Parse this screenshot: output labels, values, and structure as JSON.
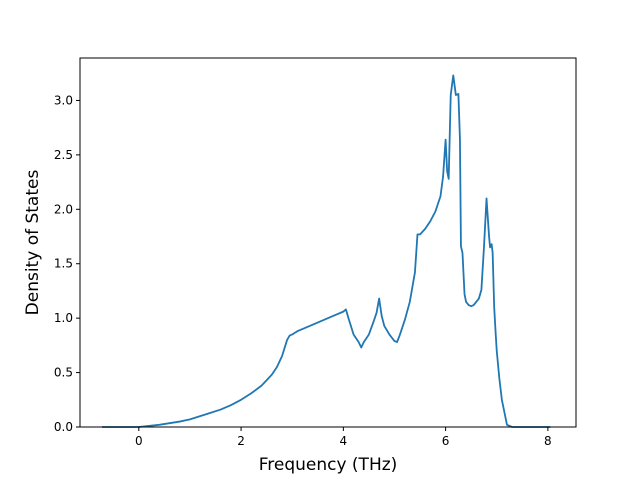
{
  "chart_data": {
    "type": "line",
    "title": "",
    "xlabel": "Frequency (THz)",
    "ylabel": "Density of States",
    "xlim": [
      -1.15,
      8.55
    ],
    "ylim": [
      0,
      3.39
    ],
    "xticks": [
      0,
      2,
      4,
      6,
      8
    ],
    "xtick_labels": [
      "0",
      "2",
      "4",
      "6",
      "8"
    ],
    "yticks": [
      0,
      0.5,
      1,
      1.5,
      2,
      2.5,
      3
    ],
    "ytick_labels": [
      "0.0",
      "0.5",
      "1.0",
      "1.5",
      "2.0",
      "2.5",
      "3.0"
    ],
    "grid": false,
    "legend": "none",
    "color": "#1f77b4",
    "series": [
      {
        "x": [
          -0.72,
          -0.4,
          0.0,
          0.2,
          0.4,
          0.6,
          0.8,
          1.0,
          1.2,
          1.4,
          1.6,
          1.8,
          2.0,
          2.2,
          2.4,
          2.6,
          2.7,
          2.8,
          2.9,
          2.95,
          3.0,
          3.1,
          3.2,
          3.4,
          3.6,
          3.8,
          4.0,
          4.05,
          4.1,
          4.2,
          4.3,
          4.35,
          4.4,
          4.5,
          4.6,
          4.65,
          4.7,
          4.75,
          4.8,
          4.9,
          5.0,
          5.05,
          5.1,
          5.2,
          5.3,
          5.4,
          5.45,
          5.5,
          5.6,
          5.7,
          5.8,
          5.9,
          5.95,
          6.0,
          6.03,
          6.06,
          6.1,
          6.15,
          6.2,
          6.25,
          6.28,
          6.3,
          6.33,
          6.37,
          6.4,
          6.45,
          6.5,
          6.55,
          6.6,
          6.65,
          6.7,
          6.75,
          6.8,
          6.85,
          6.87,
          6.9,
          6.92,
          6.95,
          6.98,
          7.0,
          7.05,
          7.1,
          7.2,
          7.3,
          7.35,
          7.37,
          7.4,
          7.6,
          8.05
        ],
        "y": [
          0.0,
          0.0,
          0.0,
          0.01,
          0.02,
          0.035,
          0.05,
          0.07,
          0.1,
          0.13,
          0.16,
          0.2,
          0.25,
          0.31,
          0.38,
          0.48,
          0.55,
          0.65,
          0.8,
          0.84,
          0.85,
          0.88,
          0.9,
          0.94,
          0.98,
          1.02,
          1.06,
          1.08,
          1.0,
          0.85,
          0.78,
          0.73,
          0.78,
          0.85,
          0.98,
          1.05,
          1.18,
          1.02,
          0.93,
          0.85,
          0.79,
          0.78,
          0.84,
          0.98,
          1.15,
          1.42,
          1.77,
          1.77,
          1.82,
          1.89,
          1.98,
          2.12,
          2.3,
          2.64,
          2.35,
          2.28,
          3.05,
          3.23,
          3.05,
          3.06,
          2.65,
          1.66,
          1.6,
          1.22,
          1.15,
          1.12,
          1.11,
          1.12,
          1.15,
          1.18,
          1.26,
          1.65,
          2.1,
          1.75,
          1.65,
          1.68,
          1.6,
          1.1,
          0.85,
          0.7,
          0.45,
          0.25,
          0.02,
          0.0,
          0.0,
          0.0,
          0.0,
          0.0,
          0.0
        ]
      }
    ]
  }
}
